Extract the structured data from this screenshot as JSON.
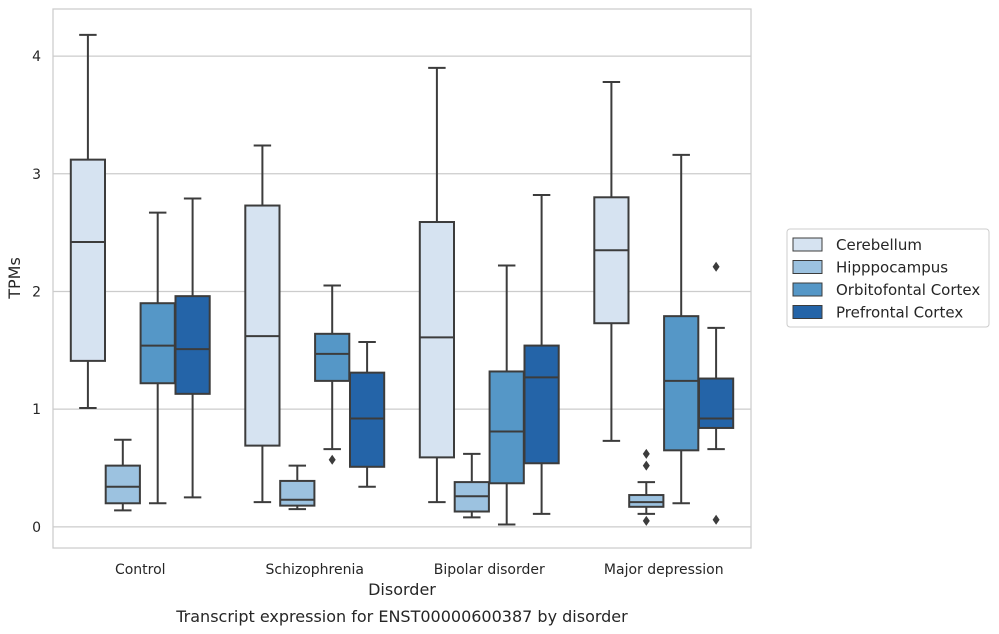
{
  "chart_data": {
    "type": "box",
    "title": "",
    "caption": "Transcript expression for ENST00000600387 by disorder",
    "xlabel": "Disorder",
    "ylabel": "TPMs",
    "ylim": [
      -0.18,
      4.4
    ],
    "yticks": [
      "0",
      "1",
      "2",
      "3",
      "4"
    ],
    "grid": "horizontal",
    "legend_position": "right",
    "categories": [
      "Control",
      "Schizophrenia",
      "Bipolar disorder",
      "Major depression"
    ],
    "series": [
      {
        "name": "Cerebellum",
        "color": "#d6e3f1",
        "boxes": [
          {
            "whislo": 1.01,
            "q1": 1.41,
            "med": 2.42,
            "q3": 3.12,
            "whishi": 4.18,
            "fliers": []
          },
          {
            "whislo": 0.21,
            "q1": 0.69,
            "med": 1.62,
            "q3": 2.73,
            "whishi": 3.24,
            "fliers": []
          },
          {
            "whislo": 0.21,
            "q1": 0.59,
            "med": 1.61,
            "q3": 2.59,
            "whishi": 3.9,
            "fliers": []
          },
          {
            "whislo": 0.73,
            "q1": 1.73,
            "med": 2.35,
            "q3": 2.8,
            "whishi": 3.78,
            "fliers": []
          }
        ]
      },
      {
        "name": "Hipppocampus",
        "color": "#9cc2e0",
        "boxes": [
          {
            "whislo": 0.14,
            "q1": 0.2,
            "med": 0.34,
            "q3": 0.52,
            "whishi": 0.74,
            "fliers": []
          },
          {
            "whislo": 0.15,
            "q1": 0.18,
            "med": 0.23,
            "q3": 0.39,
            "whishi": 0.52,
            "fliers": []
          },
          {
            "whislo": 0.08,
            "q1": 0.13,
            "med": 0.26,
            "q3": 0.38,
            "whishi": 0.62,
            "fliers": []
          },
          {
            "whislo": 0.11,
            "q1": 0.17,
            "med": 0.21,
            "q3": 0.27,
            "whishi": 0.38,
            "fliers": [
              0.52,
              0.62,
              0.05
            ]
          }
        ]
      },
      {
        "name": "Orbitofontal Cortex",
        "color": "#5597c7",
        "boxes": [
          {
            "whislo": 0.2,
            "q1": 1.22,
            "med": 1.54,
            "q3": 1.9,
            "whishi": 2.67,
            "fliers": []
          },
          {
            "whislo": 0.66,
            "q1": 1.24,
            "med": 1.47,
            "q3": 1.64,
            "whishi": 2.05,
            "fliers": [
              0.57
            ]
          },
          {
            "whislo": 0.02,
            "q1": 0.37,
            "med": 0.81,
            "q3": 1.32,
            "whishi": 2.22,
            "fliers": []
          },
          {
            "whislo": 0.2,
            "q1": 0.65,
            "med": 1.24,
            "q3": 1.79,
            "whishi": 3.16,
            "fliers": []
          }
        ]
      },
      {
        "name": "Prefrontal Cortex",
        "color": "#2464a8",
        "boxes": [
          {
            "whislo": 0.25,
            "q1": 1.13,
            "med": 1.51,
            "q3": 1.96,
            "whishi": 2.79,
            "fliers": []
          },
          {
            "whislo": 0.34,
            "q1": 0.51,
            "med": 0.92,
            "q3": 1.31,
            "whishi": 1.57,
            "fliers": []
          },
          {
            "whislo": 0.11,
            "q1": 0.54,
            "med": 1.27,
            "q3": 1.54,
            "whishi": 2.82,
            "fliers": []
          },
          {
            "whislo": 0.66,
            "q1": 0.84,
            "med": 0.92,
            "q3": 1.26,
            "whishi": 1.69,
            "fliers": [
              2.21,
              0.06
            ]
          }
        ]
      }
    ]
  }
}
